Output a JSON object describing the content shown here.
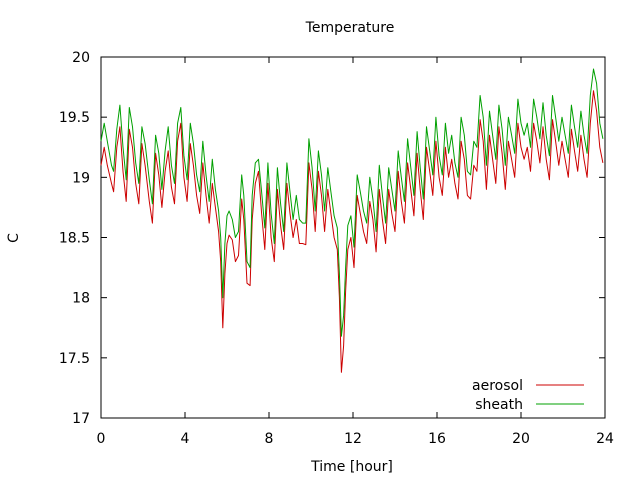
{
  "chart_data": {
    "type": "line",
    "title": "Temperature",
    "xlabel": "Time [hour]",
    "ylabel": "C",
    "xlim": [
      0,
      24
    ],
    "ylim": [
      17,
      20
    ],
    "xticks": [
      0,
      4,
      8,
      12,
      16,
      20,
      24
    ],
    "yticks": [
      17,
      17.5,
      18,
      18.5,
      19,
      19.5,
      20
    ],
    "xtick_labels": [
      "0",
      "4",
      "8",
      "12",
      "16",
      "20",
      "24"
    ],
    "ytick_labels": [
      "17",
      "17.5",
      "18",
      "18.5",
      "19",
      "19.5",
      "20"
    ],
    "grid": false,
    "legend": "bottom-right",
    "series": [
      {
        "name": "aerosol",
        "color": "#cc0000",
        "x": [
          0,
          0.15,
          0.3,
          0.5,
          0.6,
          0.75,
          0.9,
          1.05,
          1.2,
          1.35,
          1.5,
          1.65,
          1.8,
          1.95,
          2.1,
          2.3,
          2.45,
          2.6,
          2.75,
          2.9,
          3.05,
          3.2,
          3.35,
          3.5,
          3.65,
          3.8,
          3.95,
          4.1,
          4.25,
          4.4,
          4.55,
          4.7,
          4.85,
          5.0,
          5.15,
          5.3,
          5.45,
          5.6,
          5.7,
          5.8,
          5.9,
          6.0,
          6.1,
          6.25,
          6.4,
          6.55,
          6.7,
          6.8,
          6.95,
          7.1,
          7.2,
          7.35,
          7.5,
          7.65,
          7.8,
          7.95,
          8.1,
          8.25,
          8.4,
          8.55,
          8.7,
          8.85,
          9.0,
          9.15,
          9.3,
          9.45,
          9.6,
          9.75,
          9.9,
          10.05,
          10.2,
          10.35,
          10.5,
          10.65,
          10.8,
          10.95,
          11.1,
          11.25,
          11.35,
          11.45,
          11.55,
          11.65,
          11.75,
          11.9,
          12.05,
          12.2,
          12.35,
          12.5,
          12.65,
          12.8,
          12.95,
          13.1,
          13.25,
          13.4,
          13.55,
          13.7,
          13.85,
          14.0,
          14.15,
          14.3,
          14.45,
          14.6,
          14.75,
          14.9,
          15.05,
          15.2,
          15.35,
          15.5,
          15.65,
          15.8,
          15.95,
          16.1,
          16.25,
          16.4,
          16.55,
          16.7,
          16.85,
          17.0,
          17.15,
          17.3,
          17.45,
          17.6,
          17.75,
          17.9,
          18.05,
          18.2,
          18.35,
          18.5,
          18.65,
          18.8,
          18.95,
          19.1,
          19.25,
          19.4,
          19.55,
          19.7,
          19.85,
          20.0,
          20.15,
          20.3,
          20.45,
          20.6,
          20.75,
          20.9,
          21.05,
          21.2,
          21.35,
          21.5,
          21.65,
          21.8,
          21.95,
          22.1,
          22.25,
          22.4,
          22.55,
          22.7,
          22.85,
          23.0,
          23.15,
          23.3,
          23.45,
          23.6,
          23.75,
          23.9
        ],
        "y": [
          19.1,
          19.25,
          19.1,
          18.95,
          18.88,
          19.25,
          19.42,
          19.05,
          18.8,
          19.4,
          19.25,
          18.95,
          18.78,
          19.28,
          19.1,
          18.8,
          18.62,
          19.2,
          19.02,
          18.75,
          19.05,
          19.22,
          18.92,
          18.78,
          19.3,
          19.45,
          19.0,
          18.8,
          19.28,
          19.1,
          18.85,
          18.7,
          19.12,
          18.85,
          18.62,
          18.95,
          18.75,
          18.55,
          18.3,
          17.75,
          18.2,
          18.45,
          18.52,
          18.48,
          18.3,
          18.35,
          18.82,
          18.65,
          18.12,
          18.1,
          18.65,
          18.95,
          19.05,
          18.7,
          18.4,
          18.95,
          18.5,
          18.3,
          18.9,
          18.6,
          18.4,
          18.95,
          18.7,
          18.5,
          18.65,
          18.45,
          18.45,
          18.44,
          19.12,
          18.9,
          18.55,
          19.05,
          18.85,
          18.55,
          18.9,
          18.7,
          18.5,
          18.4,
          18.0,
          17.38,
          17.6,
          18.05,
          18.4,
          18.5,
          18.25,
          18.85,
          18.7,
          18.55,
          18.45,
          18.8,
          18.65,
          18.38,
          18.9,
          18.65,
          18.45,
          18.9,
          18.7,
          18.55,
          19.05,
          18.8,
          18.62,
          19.12,
          18.9,
          18.68,
          19.2,
          18.9,
          18.65,
          19.25,
          19.05,
          18.85,
          19.3,
          19.0,
          18.85,
          19.25,
          19.0,
          19.15,
          18.95,
          18.82,
          19.3,
          19.15,
          18.85,
          18.82,
          19.1,
          19.05,
          19.48,
          19.3,
          18.9,
          19.35,
          19.15,
          18.95,
          19.42,
          19.2,
          18.9,
          19.3,
          19.15,
          19.0,
          19.45,
          19.25,
          19.15,
          19.25,
          19.05,
          19.45,
          19.3,
          19.12,
          19.42,
          19.15,
          18.98,
          19.48,
          19.3,
          19.1,
          19.3,
          19.15,
          19.0,
          19.4,
          19.22,
          19.05,
          19.35,
          19.15,
          19.0,
          19.45,
          19.72,
          19.55,
          19.25,
          19.12
        ]
      },
      {
        "name": "sheath",
        "color": "#00a000",
        "x": [
          0,
          0.15,
          0.3,
          0.5,
          0.6,
          0.75,
          0.9,
          1.05,
          1.2,
          1.35,
          1.5,
          1.65,
          1.8,
          1.95,
          2.1,
          2.3,
          2.45,
          2.6,
          2.75,
          2.9,
          3.05,
          3.2,
          3.35,
          3.5,
          3.65,
          3.8,
          3.95,
          4.1,
          4.25,
          4.4,
          4.55,
          4.7,
          4.85,
          5.0,
          5.15,
          5.3,
          5.45,
          5.6,
          5.7,
          5.8,
          5.9,
          6.0,
          6.1,
          6.25,
          6.4,
          6.55,
          6.7,
          6.8,
          6.95,
          7.1,
          7.2,
          7.35,
          7.5,
          7.65,
          7.8,
          7.95,
          8.1,
          8.25,
          8.4,
          8.55,
          8.7,
          8.85,
          9.0,
          9.15,
          9.3,
          9.45,
          9.6,
          9.75,
          9.9,
          10.05,
          10.2,
          10.35,
          10.5,
          10.65,
          10.8,
          10.95,
          11.1,
          11.25,
          11.35,
          11.45,
          11.55,
          11.65,
          11.75,
          11.9,
          12.05,
          12.2,
          12.35,
          12.5,
          12.65,
          12.8,
          12.95,
          13.1,
          13.25,
          13.4,
          13.55,
          13.7,
          13.85,
          14.0,
          14.15,
          14.3,
          14.45,
          14.6,
          14.75,
          14.9,
          15.05,
          15.2,
          15.35,
          15.5,
          15.65,
          15.8,
          15.95,
          16.1,
          16.25,
          16.4,
          16.55,
          16.7,
          16.85,
          17.0,
          17.15,
          17.3,
          17.45,
          17.6,
          17.75,
          17.9,
          18.05,
          18.2,
          18.35,
          18.5,
          18.65,
          18.8,
          18.95,
          19.1,
          19.25,
          19.4,
          19.55,
          19.7,
          19.85,
          20.0,
          20.15,
          20.3,
          20.45,
          20.6,
          20.75,
          20.9,
          21.05,
          21.2,
          21.35,
          21.5,
          21.65,
          21.8,
          21.95,
          22.1,
          22.25,
          22.4,
          22.55,
          22.7,
          22.85,
          23.0,
          23.15,
          23.3,
          23.45,
          23.6,
          23.75,
          23.9
        ],
        "y": [
          19.3,
          19.45,
          19.3,
          19.1,
          19.05,
          19.4,
          19.6,
          19.25,
          18.98,
          19.58,
          19.42,
          19.12,
          18.95,
          19.42,
          19.28,
          18.98,
          18.78,
          19.35,
          19.2,
          18.9,
          19.22,
          19.42,
          19.1,
          18.95,
          19.45,
          19.58,
          19.18,
          18.98,
          19.45,
          19.28,
          19.02,
          18.88,
          19.3,
          19.02,
          18.8,
          19.15,
          18.9,
          18.72,
          18.5,
          18.0,
          18.45,
          18.68,
          18.72,
          18.65,
          18.5,
          18.55,
          19.02,
          18.85,
          18.3,
          18.25,
          18.85,
          19.12,
          19.15,
          18.88,
          18.58,
          19.12,
          18.7,
          18.45,
          19.08,
          18.78,
          18.55,
          19.12,
          18.88,
          18.65,
          18.85,
          18.65,
          18.62,
          18.62,
          19.32,
          19.08,
          18.72,
          19.22,
          19.02,
          18.72,
          19.08,
          18.88,
          18.68,
          18.58,
          18.2,
          17.68,
          17.85,
          18.25,
          18.6,
          18.68,
          18.42,
          19.02,
          18.88,
          18.72,
          18.62,
          19.0,
          18.82,
          18.55,
          19.1,
          18.85,
          18.62,
          19.08,
          18.9,
          18.72,
          19.22,
          19.0,
          18.8,
          19.32,
          19.08,
          18.85,
          19.38,
          19.08,
          18.82,
          19.42,
          19.22,
          19.02,
          19.5,
          19.18,
          19.02,
          19.45,
          19.2,
          19.35,
          19.12,
          19.0,
          19.5,
          19.35,
          19.05,
          19.02,
          19.3,
          19.25,
          19.68,
          19.5,
          19.1,
          19.55,
          19.35,
          19.15,
          19.6,
          19.4,
          19.1,
          19.5,
          19.35,
          19.2,
          19.65,
          19.45,
          19.35,
          19.45,
          19.25,
          19.65,
          19.5,
          19.32,
          19.62,
          19.35,
          19.18,
          19.68,
          19.5,
          19.3,
          19.5,
          19.35,
          19.2,
          19.6,
          19.42,
          19.25,
          19.55,
          19.35,
          19.2,
          19.68,
          19.9,
          19.78,
          19.45,
          19.32
        ]
      }
    ]
  }
}
